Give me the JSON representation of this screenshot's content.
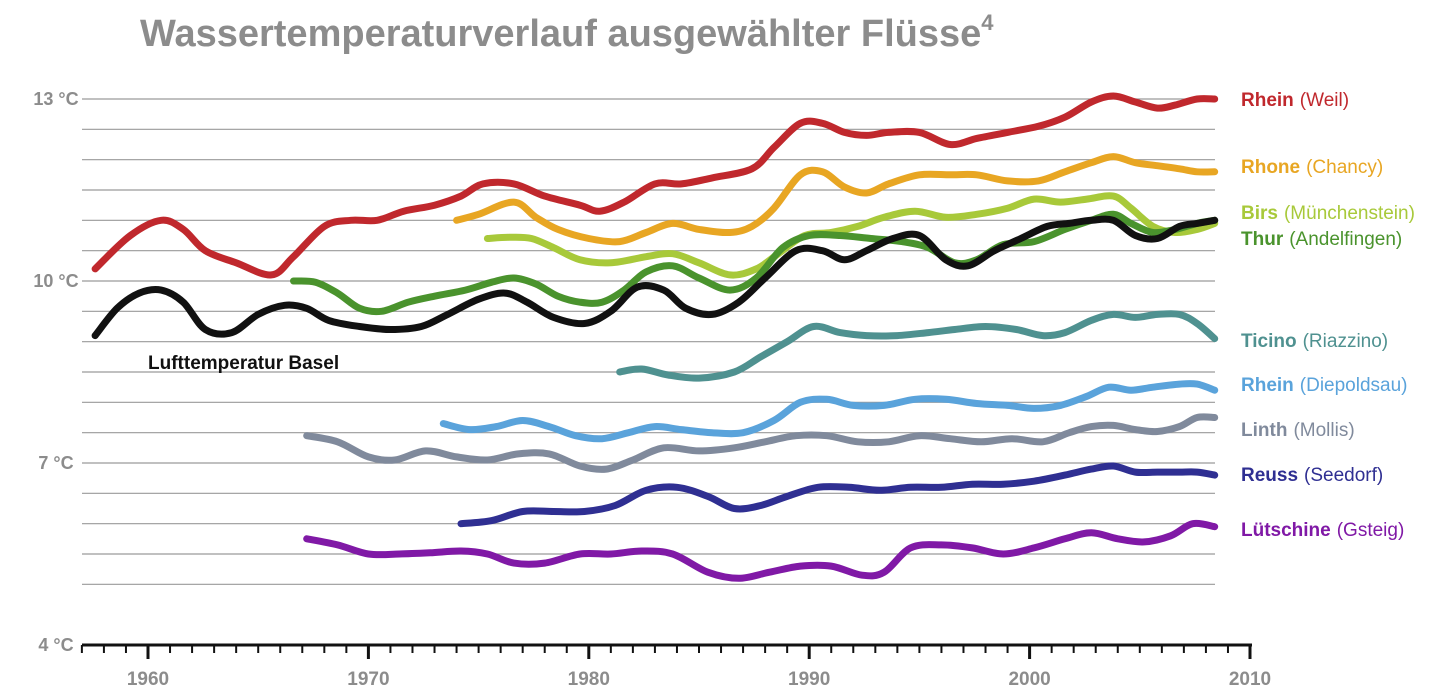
{
  "chart_data": {
    "type": "line",
    "title": "Wassertemperaturverlauf ausgewählter Flüsse",
    "title_sup": "4",
    "xlabel": "",
    "ylabel": "",
    "xlim": [
      1957,
      2010
    ],
    "ylim": [
      4,
      13.5
    ],
    "y_tick_values": [
      4,
      7,
      10,
      13
    ],
    "y_tick_labels": [
      "4 °C",
      "7 °C",
      "10 °C",
      "13 °C"
    ],
    "x_tick_values": [
      1960,
      1970,
      1980,
      1990,
      2000,
      2010
    ],
    "x_tick_labels": [
      "1960",
      "1970",
      "1980",
      "1990",
      "2000",
      "2010"
    ],
    "gridlines_y": [
      5,
      5.5,
      6,
      6.5,
      7,
      7.5,
      8,
      8.5,
      9,
      9.5,
      10,
      10.5,
      11,
      11.5,
      12,
      12.5,
      13
    ],
    "annotation": "Lufttemperatur Basel",
    "series": [
      {
        "name": "Rhein",
        "location": "(Weil)",
        "color": "#c0282d",
        "x": [
          1957.6,
          1959.2,
          1960.6,
          1961.6,
          1962.6,
          1964,
          1965.6,
          1966.6,
          1968,
          1969.2,
          1970.4,
          1971.6,
          1973,
          1974.2,
          1975.2,
          1976.6,
          1978,
          1979.6,
          1980.5,
          1981.6,
          1983,
          1984.2,
          1985.6,
          1987.4,
          1988.4,
          1989.6,
          1990.6,
          1991.6,
          1992.6,
          1993.6,
          1995,
          1996.4,
          1997.6,
          1999,
          2000.4,
          2001.6,
          2002.8,
          2003.8,
          2004.8,
          2005.8,
          2006.6,
          2007.6,
          2008.4
        ],
        "values": [
          10.2,
          10.75,
          11.0,
          10.85,
          10.5,
          10.3,
          10.1,
          10.4,
          10.9,
          11.0,
          11.0,
          11.15,
          11.25,
          11.4,
          11.6,
          11.6,
          11.4,
          11.25,
          11.15,
          11.3,
          11.6,
          11.6,
          11.7,
          11.85,
          12.2,
          12.6,
          12.6,
          12.45,
          12.4,
          12.45,
          12.45,
          12.25,
          12.35,
          12.45,
          12.55,
          12.7,
          12.95,
          13.05,
          12.95,
          12.85,
          12.9,
          13.0,
          13.0
        ]
      },
      {
        "name": "Rhone",
        "location": "(Chancy)",
        "color": "#e8a623",
        "x": [
          1974,
          1975,
          1976.6,
          1977.6,
          1978.6,
          1980,
          1981.4,
          1982.6,
          1983.8,
          1985,
          1986.4,
          1987.4,
          1988.4,
          1989.6,
          1990.6,
          1991.6,
          1992.6,
          1993.6,
          1995,
          1996.4,
          1997.6,
          1999,
          2000.4,
          2001.6,
          2002.8,
          2003.8,
          2004.8,
          2005.8,
          2006.8,
          2007.6,
          2008.4
        ],
        "values": [
          11.0,
          11.1,
          11.3,
          11.05,
          10.85,
          10.7,
          10.65,
          10.8,
          10.95,
          10.85,
          10.8,
          10.9,
          11.2,
          11.75,
          11.8,
          11.55,
          11.45,
          11.6,
          11.75,
          11.75,
          11.75,
          11.65,
          11.65,
          11.8,
          11.95,
          12.05,
          11.95,
          11.9,
          11.85,
          11.8,
          11.8
        ]
      },
      {
        "name": "Birs",
        "location": "(Münchenstein)",
        "color": "#a8c93a",
        "x": [
          1975.4,
          1976.4,
          1977.4,
          1978.4,
          1979.6,
          1981,
          1982.6,
          1983.8,
          1985,
          1986.4,
          1987.6,
          1988.6,
          1989.8,
          1991,
          1992.2,
          1993.4,
          1994.8,
          1996.2,
          1997.6,
          1999,
          2000.2,
          2001.4,
          2002.6,
          2003.8,
          2004.6,
          2005.6,
          2006.6,
          2007.6,
          2008.4
        ],
        "values": [
          10.7,
          10.72,
          10.7,
          10.55,
          10.35,
          10.3,
          10.4,
          10.45,
          10.3,
          10.1,
          10.2,
          10.45,
          10.75,
          10.8,
          10.9,
          11.05,
          11.15,
          11.05,
          11.1,
          11.2,
          11.35,
          11.3,
          11.35,
          11.4,
          11.2,
          10.9,
          10.8,
          10.85,
          10.95
        ]
      },
      {
        "name": "Thur",
        "location": "(Andelfingen)",
        "color": "#4a932d",
        "x": [
          1966.6,
          1967.6,
          1968.6,
          1969.6,
          1970.6,
          1971.8,
          1973,
          1974.4,
          1975.6,
          1976.6,
          1977.6,
          1978.6,
          1979.6,
          1980.6,
          1981.6,
          1982.6,
          1983.8,
          1985,
          1986.4,
          1987.6,
          1988.8,
          1990,
          1991.4,
          1992.8,
          1994.2,
          1995.4,
          1996.6,
          1997.6,
          1998.8,
          2000.2,
          2001.6,
          2002.8,
          2003.8,
          2004.6,
          2005.6,
          2006.6,
          2007.6,
          2008.4
        ],
        "values": [
          10.0,
          9.98,
          9.8,
          9.55,
          9.5,
          9.65,
          9.75,
          9.85,
          9.98,
          10.05,
          9.95,
          9.75,
          9.65,
          9.65,
          9.85,
          10.15,
          10.25,
          10.05,
          9.85,
          10.05,
          10.55,
          10.75,
          10.75,
          10.7,
          10.65,
          10.55,
          10.3,
          10.35,
          10.6,
          10.65,
          10.85,
          11.0,
          11.1,
          10.95,
          10.8,
          10.85,
          10.95,
          11.0
        ]
      },
      {
        "name": "Ticino",
        "location": "(Riazzino)",
        "color": "#4f9190",
        "x": [
          1981.4,
          1982.4,
          1983.6,
          1985,
          1986.6,
          1987.8,
          1989,
          1990.2,
          1991.4,
          1992.6,
          1994,
          1995.4,
          1996.6,
          1998,
          1999.4,
          2000.6,
          2001.6,
          2002.8,
          2003.8,
          2004.8,
          2005.8,
          2006.8,
          2007.6,
          2008.4
        ],
        "values": [
          8.5,
          8.55,
          8.45,
          8.4,
          8.5,
          8.75,
          9.0,
          9.25,
          9.15,
          9.1,
          9.1,
          9.15,
          9.2,
          9.25,
          9.2,
          9.1,
          9.15,
          9.35,
          9.45,
          9.4,
          9.45,
          9.45,
          9.3,
          9.05
        ]
      },
      {
        "name": "Rhein",
        "location": "(Diepoldsau)",
        "color": "#5aa3db",
        "x": [
          1973.4,
          1974.6,
          1975.8,
          1977,
          1978.2,
          1979.4,
          1980.6,
          1981.8,
          1983,
          1984.2,
          1985.6,
          1987,
          1988.4,
          1989.6,
          1990.8,
          1992,
          1993.4,
          1994.8,
          1996.2,
          1997.6,
          1999,
          2000.2,
          2001.4,
          2002.6,
          2003.6,
          2004.6,
          2005.6,
          2006.8,
          2007.6,
          2008.4
        ],
        "values": [
          7.65,
          7.55,
          7.6,
          7.7,
          7.6,
          7.45,
          7.4,
          7.5,
          7.6,
          7.55,
          7.5,
          7.5,
          7.7,
          8.0,
          8.05,
          7.95,
          7.95,
          8.05,
          8.05,
          7.98,
          7.95,
          7.9,
          7.95,
          8.1,
          8.25,
          8.2,
          8.25,
          8.3,
          8.3,
          8.2
        ]
      },
      {
        "name": "Linth",
        "location": "(Mollis)",
        "color": "#808a9c",
        "x": [
          1967.2,
          1968.6,
          1970,
          1971.2,
          1972.6,
          1974,
          1975.4,
          1976.8,
          1978.2,
          1979.6,
          1980.8,
          1982,
          1983.4,
          1985,
          1986.6,
          1988,
          1989.4,
          1990.8,
          1992.2,
          1993.6,
          1995,
          1996.4,
          1997.8,
          1999.2,
          2000.6,
          2001.8,
          2002.8,
          2003.8,
          2004.8,
          2005.8,
          2006.8,
          2007.6,
          2008.4
        ],
        "values": [
          7.45,
          7.35,
          7.1,
          7.05,
          7.2,
          7.1,
          7.05,
          7.15,
          7.15,
          6.95,
          6.9,
          7.05,
          7.25,
          7.2,
          7.25,
          7.35,
          7.45,
          7.45,
          7.35,
          7.35,
          7.45,
          7.4,
          7.35,
          7.4,
          7.35,
          7.5,
          7.6,
          7.62,
          7.55,
          7.52,
          7.6,
          7.75,
          7.75
        ]
      },
      {
        "name": "Reuss",
        "location": "(Seedorf)",
        "color": "#2f2f92",
        "x": [
          1974.2,
          1975.6,
          1977,
          1978.4,
          1979.8,
          1981.2,
          1982.6,
          1984,
          1985.4,
          1986.6,
          1987.8,
          1989,
          1990.4,
          1991.8,
          1993.2,
          1994.6,
          1996,
          1997.4,
          1998.8,
          2000.2,
          2001.6,
          2002.8,
          2003.8,
          2004.8,
          2005.8,
          2006.8,
          2007.6,
          2008.4
        ],
        "values": [
          6.0,
          6.05,
          6.2,
          6.2,
          6.2,
          6.3,
          6.55,
          6.6,
          6.45,
          6.25,
          6.3,
          6.45,
          6.6,
          6.6,
          6.55,
          6.6,
          6.6,
          6.65,
          6.65,
          6.7,
          6.8,
          6.9,
          6.95,
          6.85,
          6.85,
          6.85,
          6.85,
          6.8
        ]
      },
      {
        "name": "Lütschine",
        "location": "(Gsteig)",
        "color": "#8019a6",
        "x": [
          1967.2,
          1968.6,
          1970,
          1971.4,
          1972.8,
          1974.2,
          1975.4,
          1976.6,
          1978,
          1979.6,
          1981,
          1982.4,
          1983.8,
          1985.4,
          1986.8,
          1988.2,
          1989.6,
          1991,
          1992.4,
          1993.4,
          1994.6,
          1996,
          1997.4,
          1998.8,
          2000.2,
          2001.6,
          2002.8,
          2004,
          2005.2,
          2006.4,
          2007.4,
          2008.4
        ],
        "values": [
          5.75,
          5.65,
          5.5,
          5.5,
          5.52,
          5.55,
          5.5,
          5.35,
          5.35,
          5.5,
          5.5,
          5.55,
          5.5,
          5.2,
          5.1,
          5.2,
          5.3,
          5.3,
          5.15,
          5.2,
          5.6,
          5.65,
          5.6,
          5.5,
          5.6,
          5.75,
          5.85,
          5.75,
          5.7,
          5.8,
          6.0,
          5.95
        ]
      },
      {
        "name": "Lufttemperatur Basel",
        "location": "",
        "color": "#111111",
        "x": [
          1957.6,
          1958.6,
          1959.6,
          1960.6,
          1961.6,
          1962.6,
          1963.8,
          1965,
          1966.2,
          1967.2,
          1968.2,
          1969.6,
          1971,
          1972.4,
          1973.6,
          1975,
          1976.2,
          1977.2,
          1978.4,
          1979.8,
          1981,
          1982.2,
          1983.4,
          1984.4,
          1985.6,
          1986.8,
          1988,
          1989.4,
          1990.6,
          1991.6,
          1992.6,
          1993.8,
          1995,
          1996.2,
          1997.2,
          1998.4,
          1999.6,
          2000.8,
          2001.8,
          2002.8,
          2003.8,
          2004.8,
          2005.8,
          2006.8,
          2007.6,
          2008.4
        ],
        "values": [
          9.1,
          9.55,
          9.8,
          9.85,
          9.65,
          9.2,
          9.15,
          9.45,
          9.6,
          9.55,
          9.35,
          9.25,
          9.2,
          9.25,
          9.45,
          9.7,
          9.8,
          9.65,
          9.4,
          9.3,
          9.5,
          9.9,
          9.85,
          9.55,
          9.45,
          9.65,
          10.05,
          10.5,
          10.5,
          10.35,
          10.5,
          10.7,
          10.75,
          10.35,
          10.25,
          10.5,
          10.7,
          10.9,
          10.95,
          11.0,
          11.0,
          10.75,
          10.7,
          10.9,
          10.95,
          11.0
        ]
      }
    ]
  }
}
